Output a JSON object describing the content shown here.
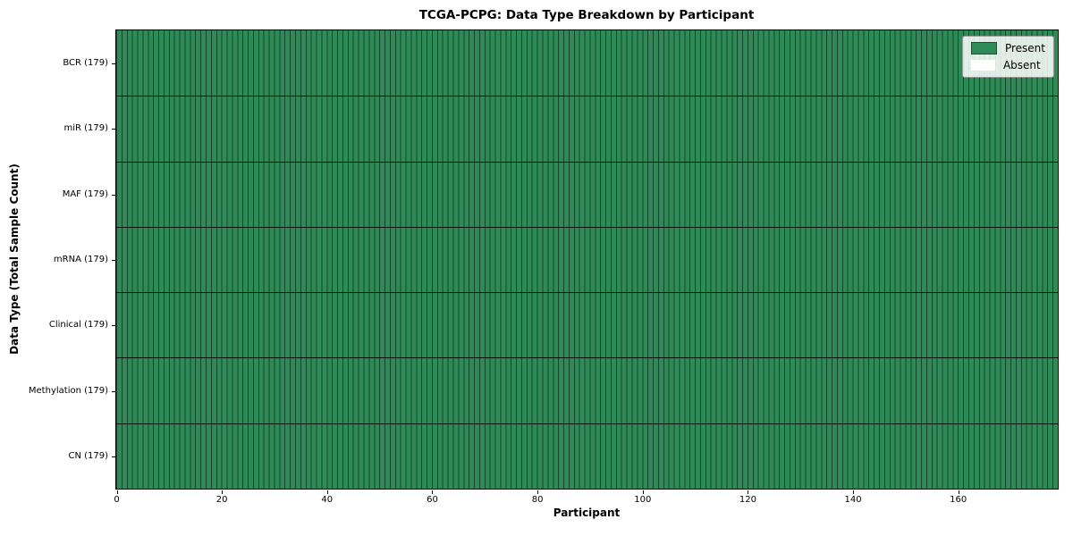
{
  "colors": {
    "present": "#2e8b57",
    "absent": "#ffffff",
    "cell_edge": "rgba(0,0,0,0.50)",
    "row_separator": "rgba(0,0,0,0.85)",
    "spine": "#000000",
    "legend_bg": "rgba(255,255,255,0.85)",
    "legend_border": "#9a9a9a",
    "present_swatch_edge": "rgba(0,0,0,0.4)"
  },
  "chart_data": {
    "type": "heatmap",
    "title": "TCGA-PCPG: Data Type Breakdown by Participant",
    "xlabel": "Participant",
    "ylabel": "Data Type (Total Sample Count)",
    "n_participants": 179,
    "x_ticks": [
      0,
      20,
      40,
      60,
      80,
      100,
      120,
      140,
      160
    ],
    "rows": [
      {
        "label": "BCR (179)",
        "total_samples": 179,
        "present_count": 179,
        "absent_count": 0
      },
      {
        "label": "miR (179)",
        "total_samples": 179,
        "present_count": 179,
        "absent_count": 0
      },
      {
        "label": "MAF (179)",
        "total_samples": 179,
        "present_count": 179,
        "absent_count": 0
      },
      {
        "label": "mRNA (179)",
        "total_samples": 179,
        "present_count": 179,
        "absent_count": 0
      },
      {
        "label": "Clinical (179)",
        "total_samples": 179,
        "present_count": 179,
        "absent_count": 0
      },
      {
        "label": "Methylation (179)",
        "total_samples": 179,
        "present_count": 179,
        "absent_count": 0
      },
      {
        "label": "CN (179)",
        "total_samples": 179,
        "present_count": 179,
        "absent_count": 0
      }
    ],
    "cells_note": "every cell is Present (green) for all 179 participants in all 7 rows",
    "legend": [
      {
        "label": "Present",
        "color": "#2e8b57"
      },
      {
        "label": "Absent",
        "color": "#ffffff"
      }
    ],
    "legend_position": "upper right",
    "grid": false
  }
}
